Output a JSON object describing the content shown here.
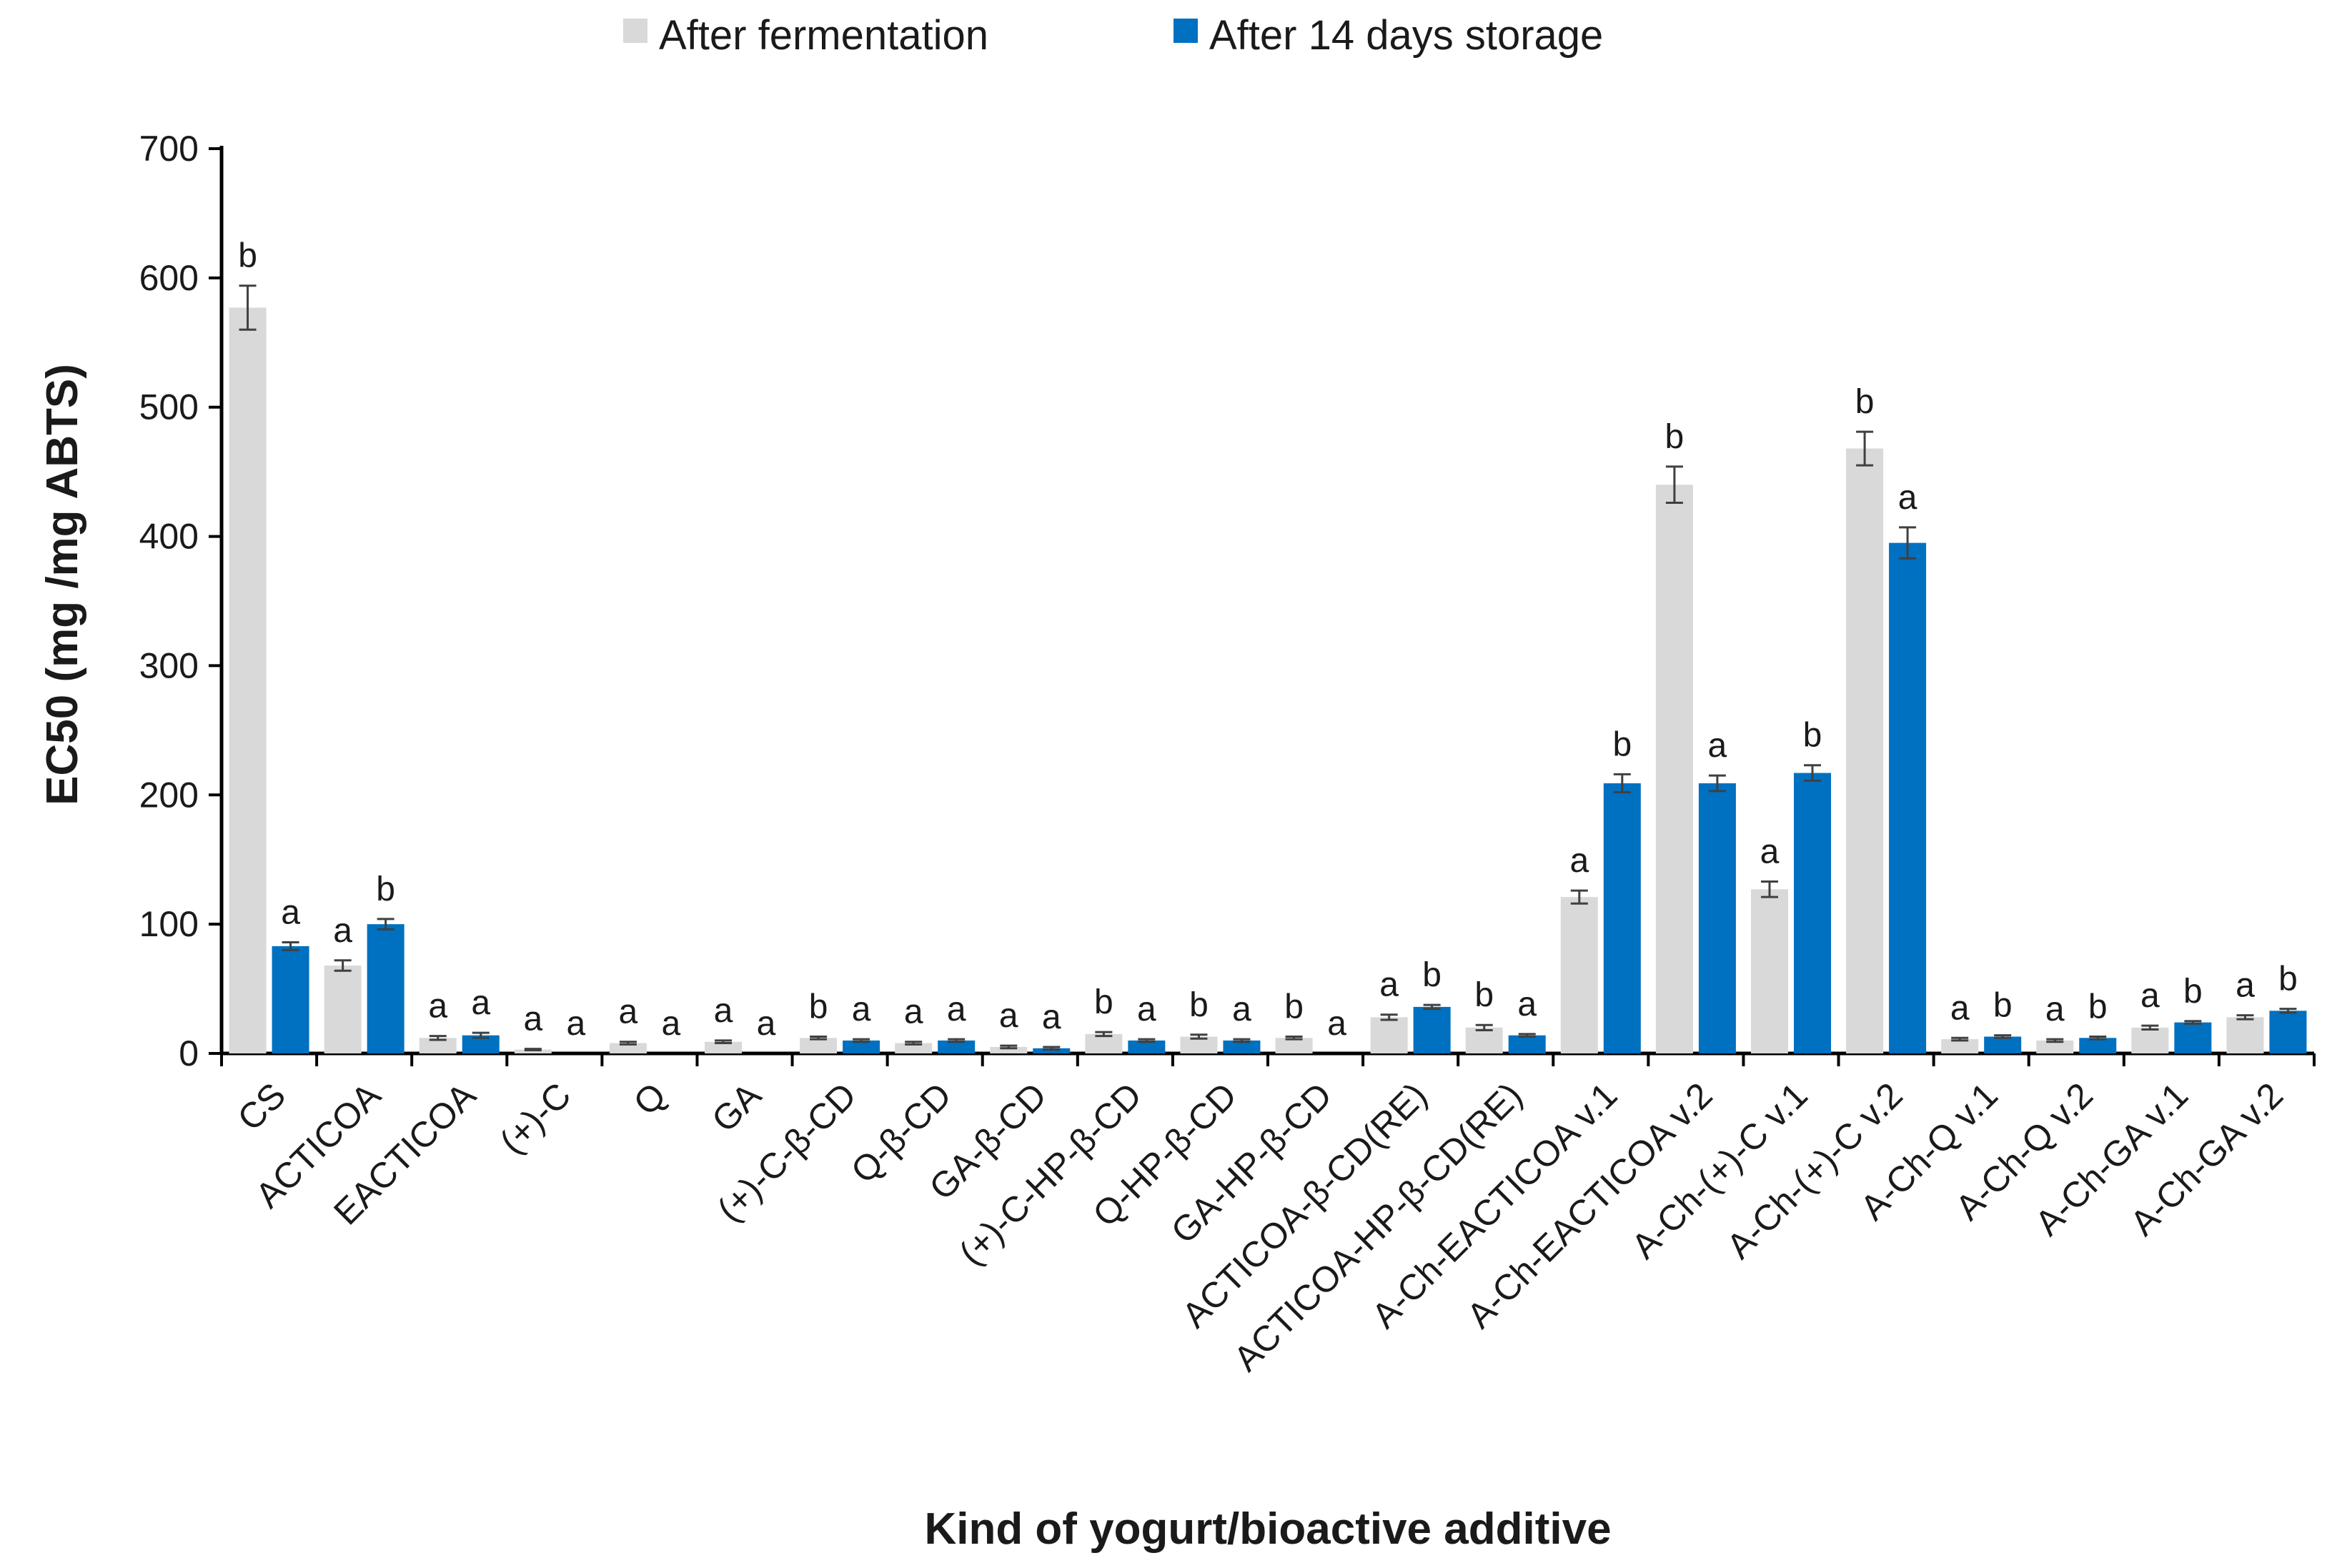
{
  "chart_data": {
    "type": "bar",
    "title": "",
    "xlabel": "Kind of yogurt/bioactive additive",
    "ylabel": "EC50 (mg /mg ABTS)",
    "ylim": [
      0,
      700
    ],
    "yticks": [
      0,
      100,
      200,
      300,
      400,
      500,
      600,
      700
    ],
    "grid": false,
    "legend_position": "top-center",
    "colors": {
      "After fermentation": "#d9d9d9",
      "After 14 days storage": "#0070c0"
    },
    "categories": [
      "CS",
      "ACTICOA",
      "EACTICOA",
      "(+)-C",
      "Q",
      "GA",
      "(+)-C-β-CD",
      "Q-β-CD",
      "GA-β-CD",
      "(+)-C-HP-β-CD",
      "Q-HP-β-CD",
      "GA-HP-β-CD",
      "ACTICOA-β-CD(RE)",
      "ACTICOA-HP-β-CD(RE)",
      "A-Ch-EACTICOA v.1",
      "A-Ch-EACTICOA v.2",
      "A-Ch-(+)-C v.1",
      "A-Ch-(+)-C v.2",
      "A-Ch-Q v.1",
      "A-Ch-Q v.2",
      "A-Ch-GA v.1",
      "A-Ch-GA v.2"
    ],
    "series": [
      {
        "name": "After fermentation",
        "values": [
          577,
          68,
          12,
          3,
          8,
          9,
          12,
          8,
          5,
          15,
          13,
          12,
          28,
          20,
          121,
          440,
          127,
          468,
          11,
          10,
          20,
          28
        ],
        "errors": [
          17,
          4,
          1.5,
          0.5,
          1,
          1,
          1,
          1,
          1,
          1.5,
          1.5,
          1,
          2,
          2,
          5,
          14,
          6,
          13,
          1,
          1,
          1.5,
          1.5
        ],
        "significance": [
          "b",
          "a",
          "a",
          "a",
          "a",
          "a",
          "b",
          "a",
          "a",
          "b",
          "b",
          "b",
          "a",
          "b",
          "a",
          "b",
          "a",
          "b",
          "a",
          "a",
          "a",
          "a"
        ]
      },
      {
        "name": "After 14 days storage",
        "values": [
          83,
          100,
          14,
          0,
          0,
          0,
          10,
          10,
          4,
          10,
          10,
          0,
          36,
          14,
          209,
          209,
          217,
          395,
          13,
          12,
          24,
          33
        ],
        "errors": [
          3,
          4,
          2,
          0,
          0,
          0,
          1,
          1,
          1,
          1,
          1,
          0,
          1.5,
          1,
          7,
          6,
          6,
          12,
          1,
          1,
          1,
          1.5
        ],
        "significance": [
          "a",
          "b",
          "a",
          "a",
          "a",
          "a",
          "a",
          "a",
          "a",
          "a",
          "a",
          "a",
          "b",
          "a",
          "b",
          "a",
          "b",
          "a",
          "b",
          "b",
          "b",
          "b"
        ]
      }
    ]
  }
}
